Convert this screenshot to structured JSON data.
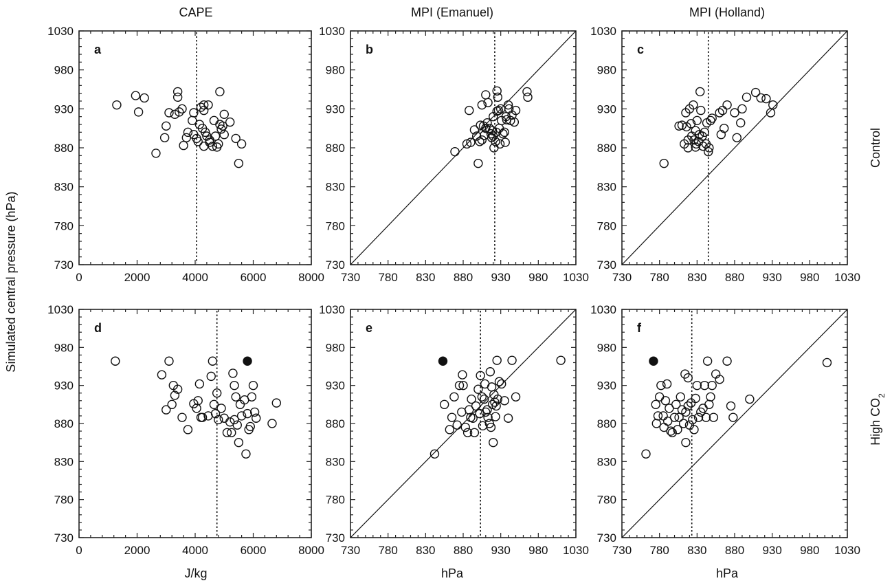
{
  "figure": {
    "y_label": "Simulated central pressure (hPa)",
    "row_labels": [
      "Control",
      "High CO2"
    ],
    "column_titles": [
      "CAPE",
      "MPI (Emanuel)",
      "MPI (Holland)"
    ],
    "x_labels_bottom": [
      "J/kg",
      "hPa",
      "hPa"
    ]
  },
  "chart_data": [
    {
      "type": "scatter",
      "panel": "a",
      "xlim": [
        0,
        8000
      ],
      "ylim": [
        730,
        1030
      ],
      "xticks": [
        0,
        2000,
        4000,
        6000,
        8000
      ],
      "yticks": [
        730,
        780,
        830,
        880,
        930,
        980,
        1030
      ],
      "reference_vline": 4050,
      "diagonal": false,
      "points": [
        [
          1300,
          935
        ],
        [
          1950,
          947
        ],
        [
          2050,
          926
        ],
        [
          2250,
          944
        ],
        [
          2650,
          873
        ],
        [
          3000,
          908
        ],
        [
          2950,
          893
        ],
        [
          3100,
          925
        ],
        [
          3300,
          923
        ],
        [
          3400,
          945
        ],
        [
          3400,
          952
        ],
        [
          3550,
          930
        ],
        [
          3450,
          926
        ],
        [
          3600,
          883
        ],
        [
          3750,
          900
        ],
        [
          3900,
          915
        ],
        [
          3950,
          925
        ],
        [
          3950,
          897
        ],
        [
          4050,
          892
        ],
        [
          4100,
          888
        ],
        [
          4150,
          910
        ],
        [
          4200,
          932
        ],
        [
          4250,
          905
        ],
        [
          4300,
          928
        ],
        [
          4300,
          935
        ],
        [
          4350,
          900
        ],
        [
          4450,
          935
        ],
        [
          4500,
          890
        ],
        [
          4500,
          887
        ],
        [
          4300,
          882
        ],
        [
          4600,
          882
        ],
        [
          4650,
          915
        ],
        [
          4700,
          895
        ],
        [
          4750,
          881
        ],
        [
          4800,
          885
        ],
        [
          4850,
          910
        ],
        [
          4850,
          952
        ],
        [
          4900,
          904
        ],
        [
          4950,
          908
        ],
        [
          5000,
          897
        ],
        [
          5000,
          923
        ],
        [
          5200,
          913
        ],
        [
          5400,
          892
        ],
        [
          5500,
          860
        ],
        [
          5600,
          885
        ],
        [
          3700,
          893
        ],
        [
          4400,
          895
        ]
      ],
      "filled_points": []
    },
    {
      "type": "scatter",
      "panel": "b",
      "xlim": [
        730,
        1030
      ],
      "ylim": [
        730,
        1030
      ],
      "xticks": [
        730,
        780,
        830,
        880,
        930,
        980,
        1030
      ],
      "yticks": [
        730,
        780,
        830,
        880,
        930,
        980,
        1030
      ],
      "reference_vline": 922,
      "diagonal": true,
      "points": [
        [
          869,
          875
        ],
        [
          885,
          885
        ],
        [
          888,
          928
        ],
        [
          890,
          887
        ],
        [
          895,
          903
        ],
        [
          898,
          895
        ],
        [
          900,
          860
        ],
        [
          902,
          888
        ],
        [
          903,
          909
        ],
        [
          905,
          935
        ],
        [
          907,
          908
        ],
        [
          908,
          896
        ],
        [
          910,
          948
        ],
        [
          912,
          912
        ],
        [
          913,
          938
        ],
        [
          915,
          905
        ],
        [
          917,
          898
        ],
        [
          918,
          893
        ],
        [
          919,
          902
        ],
        [
          920,
          895
        ],
        [
          920,
          920
        ],
        [
          921,
          880
        ],
        [
          923,
          888
        ],
        [
          924,
          900
        ],
        [
          925,
          953
        ],
        [
          926,
          945
        ],
        [
          927,
          928
        ],
        [
          928,
          905
        ],
        [
          929,
          885
        ],
        [
          930,
          930
        ],
        [
          931,
          915
        ],
        [
          933,
          898
        ],
        [
          935,
          900
        ],
        [
          936,
          887
        ],
        [
          937,
          920
        ],
        [
          938,
          916
        ],
        [
          940,
          935
        ],
        [
          941,
          930
        ],
        [
          943,
          915
        ],
        [
          945,
          922
        ],
        [
          948,
          913
        ],
        [
          950,
          928
        ],
        [
          965,
          952
        ],
        [
          966,
          945
        ],
        [
          925,
          927
        ],
        [
          910,
          905
        ],
        [
          905,
          890
        ]
      ],
      "filled_points": []
    },
    {
      "type": "scatter",
      "panel": "c",
      "xlim": [
        730,
        1030
      ],
      "ylim": [
        730,
        1030
      ],
      "xticks": [
        730,
        780,
        830,
        880,
        930,
        980,
        1030
      ],
      "yticks": [
        730,
        780,
        830,
        880,
        930,
        980,
        1030
      ],
      "reference_vline": 845,
      "diagonal": true,
      "points": [
        [
          786,
          860
        ],
        [
          806,
          908
        ],
        [
          810,
          909
        ],
        [
          813,
          885
        ],
        [
          815,
          925
        ],
        [
          816,
          907
        ],
        [
          818,
          880
        ],
        [
          820,
          930
        ],
        [
          822,
          911
        ],
        [
          823,
          895
        ],
        [
          825,
          935
        ],
        [
          826,
          890
        ],
        [
          828,
          902
        ],
        [
          829,
          885
        ],
        [
          830,
          915
        ],
        [
          832,
          888
        ],
        [
          834,
          952
        ],
        [
          835,
          928
        ],
        [
          837,
          895
        ],
        [
          838,
          882
        ],
        [
          840,
          900
        ],
        [
          842,
          885
        ],
        [
          843,
          912
        ],
        [
          845,
          875
        ],
        [
          846,
          880
        ],
        [
          848,
          915
        ],
        [
          850,
          918
        ],
        [
          860,
          925
        ],
        [
          862,
          897
        ],
        [
          864,
          928
        ],
        [
          866,
          905
        ],
        [
          870,
          935
        ],
        [
          880,
          925
        ],
        [
          883,
          893
        ],
        [
          888,
          912
        ],
        [
          890,
          930
        ],
        [
          896,
          945
        ],
        [
          908,
          951
        ],
        [
          915,
          944
        ],
        [
          922,
          943
        ],
        [
          928,
          925
        ],
        [
          931,
          935
        ],
        [
          818,
          890
        ],
        [
          833,
          897
        ],
        [
          828,
          881
        ]
      ],
      "filled_points": []
    },
    {
      "type": "scatter",
      "panel": "d",
      "xlim": [
        0,
        8000
      ],
      "ylim": [
        730,
        1030
      ],
      "xticks": [
        0,
        2000,
        4000,
        6000,
        8000
      ],
      "yticks": [
        730,
        780,
        830,
        880,
        930,
        980,
        1030
      ],
      "reference_vline": 4750,
      "diagonal": false,
      "points": [
        [
          1250,
          962
        ],
        [
          2850,
          944
        ],
        [
          3100,
          962
        ],
        [
          3000,
          898
        ],
        [
          3200,
          905
        ],
        [
          3250,
          930
        ],
        [
          3300,
          917
        ],
        [
          3400,
          925
        ],
        [
          3550,
          888
        ],
        [
          3750,
          872
        ],
        [
          3950,
          906
        ],
        [
          4100,
          910
        ],
        [
          4150,
          932
        ],
        [
          4050,
          900
        ],
        [
          4200,
          888
        ],
        [
          4450,
          890
        ],
        [
          4550,
          942
        ],
        [
          4600,
          962
        ],
        [
          4650,
          905
        ],
        [
          4700,
          893
        ],
        [
          4750,
          920
        ],
        [
          4800,
          885
        ],
        [
          4900,
          900
        ],
        [
          5000,
          887
        ],
        [
          5100,
          868
        ],
        [
          5250,
          868
        ],
        [
          5300,
          946
        ],
        [
          5350,
          930
        ],
        [
          5400,
          915
        ],
        [
          5350,
          885
        ],
        [
          5450,
          878
        ],
        [
          5500,
          855
        ],
        [
          5550,
          905
        ],
        [
          5600,
          890
        ],
        [
          5700,
          911
        ],
        [
          5750,
          840
        ],
        [
          5800,
          893
        ],
        [
          5850,
          872
        ],
        [
          5900,
          876
        ],
        [
          5950,
          915
        ],
        [
          6000,
          930
        ],
        [
          6050,
          895
        ],
        [
          6100,
          887
        ],
        [
          6650,
          880
        ],
        [
          6800,
          907
        ],
        [
          5200,
          882
        ],
        [
          4250,
          888
        ]
      ],
      "filled_points": [
        [
          5800,
          962
        ]
      ]
    },
    {
      "type": "scatter",
      "panel": "e",
      "xlim": [
        730,
        1030
      ],
      "ylim": [
        730,
        1030
      ],
      "xticks": [
        730,
        780,
        830,
        880,
        930,
        980,
        1030
      ],
      "yticks": [
        730,
        780,
        830,
        880,
        930,
        980,
        1030
      ],
      "reference_vline": 903,
      "diagonal": true,
      "points": [
        [
          842,
          840
        ],
        [
          855,
          905
        ],
        [
          862,
          872
        ],
        [
          865,
          888
        ],
        [
          868,
          915
        ],
        [
          872,
          878
        ],
        [
          875,
          930
        ],
        [
          878,
          895
        ],
        [
          879,
          944
        ],
        [
          880,
          930
        ],
        [
          883,
          875
        ],
        [
          886,
          868
        ],
        [
          888,
          898
        ],
        [
          890,
          888
        ],
        [
          891,
          912
        ],
        [
          893,
          887
        ],
        [
          895,
          868
        ],
        [
          897,
          903
        ],
        [
          900,
          925
        ],
        [
          902,
          893
        ],
        [
          903,
          943
        ],
        [
          905,
          915
        ],
        [
          906,
          877
        ],
        [
          908,
          912
        ],
        [
          909,
          932
        ],
        [
          910,
          895
        ],
        [
          912,
          898
        ],
        [
          913,
          888
        ],
        [
          915,
          880
        ],
        [
          916,
          948
        ],
        [
          917,
          875
        ],
        [
          918,
          928
        ],
        [
          919,
          905
        ],
        [
          920,
          855
        ],
        [
          921,
          918
        ],
        [
          922,
          908
        ],
        [
          923,
          889
        ],
        [
          924,
          903
        ],
        [
          925,
          963
        ],
        [
          926,
          912
        ],
        [
          928,
          935
        ],
        [
          931,
          932
        ],
        [
          935,
          910
        ],
        [
          940,
          887
        ],
        [
          945,
          963
        ],
        [
          950,
          915
        ],
        [
          1010,
          963
        ]
      ],
      "filled_points": [
        [
          853,
          962
        ]
      ]
    },
    {
      "type": "scatter",
      "panel": "f",
      "xlim": [
        730,
        1030
      ],
      "ylim": [
        730,
        1030
      ],
      "xticks": [
        730,
        780,
        830,
        880,
        930,
        980,
        1030
      ],
      "yticks": [
        730,
        780,
        830,
        880,
        930,
        980,
        1030
      ],
      "reference_vline": 823,
      "diagonal": true,
      "points": [
        [
          762,
          840
        ],
        [
          775,
          905
        ],
        [
          776,
          880
        ],
        [
          778,
          890
        ],
        [
          780,
          915
        ],
        [
          782,
          930
        ],
        [
          785,
          890
        ],
        [
          786,
          875
        ],
        [
          788,
          910
        ],
        [
          790,
          932
        ],
        [
          791,
          883
        ],
        [
          793,
          900
        ],
        [
          795,
          870
        ],
        [
          797,
          868
        ],
        [
          800,
          888
        ],
        [
          802,
          905
        ],
        [
          804,
          872
        ],
        [
          806,
          888
        ],
        [
          808,
          915
        ],
        [
          810,
          898
        ],
        [
          812,
          880
        ],
        [
          814,
          945
        ],
        [
          815,
          855
        ],
        [
          815,
          895
        ],
        [
          818,
          903
        ],
        [
          818,
          940
        ],
        [
          820,
          878
        ],
        [
          822,
          907
        ],
        [
          824,
          885
        ],
        [
          826,
          872
        ],
        [
          828,
          913
        ],
        [
          830,
          930
        ],
        [
          832,
          888
        ],
        [
          835,
          895
        ],
        [
          838,
          900
        ],
        [
          840,
          930
        ],
        [
          842,
          888
        ],
        [
          844,
          962
        ],
        [
          846,
          905
        ],
        [
          848,
          915
        ],
        [
          850,
          930
        ],
        [
          852,
          888
        ],
        [
          855,
          945
        ],
        [
          860,
          938
        ],
        [
          870,
          962
        ],
        [
          875,
          903
        ],
        [
          878,
          888
        ],
        [
          900,
          912
        ],
        [
          1003,
          960
        ]
      ],
      "filled_points": [
        [
          772,
          962
        ]
      ]
    }
  ]
}
